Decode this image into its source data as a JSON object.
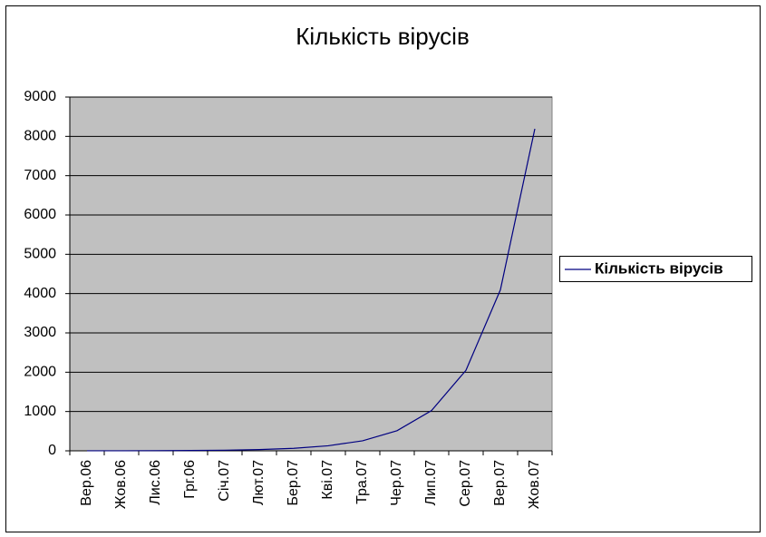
{
  "chart_data": {
    "type": "line",
    "title": "Кількість вірусів",
    "categories": [
      "Вер.06",
      "Жов.06",
      "Лис.06",
      "Грг.06",
      "Січ.07",
      "Лют.07",
      "Бер.07",
      "Кві.07",
      "Тра.07",
      "Чер.07",
      "Лип.07",
      "Сер.07",
      "Вер.07",
      "Жов.07"
    ],
    "series": [
      {
        "name": "Кількість вірусів",
        "color": "#000080",
        "values": [
          1,
          2,
          4,
          8,
          16,
          32,
          64,
          128,
          256,
          512,
          1024,
          2048,
          4096,
          8192
        ]
      }
    ],
    "ylim": [
      0,
      9000
    ],
    "yticks": [
      0,
      1000,
      2000,
      3000,
      4000,
      5000,
      6000,
      7000,
      8000,
      9000
    ],
    "grid": true,
    "legend": "right",
    "background": "#c0c0c0"
  }
}
